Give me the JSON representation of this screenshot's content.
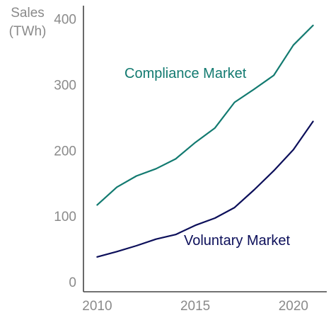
{
  "chart_data": {
    "type": "line",
    "ylabel_lines": [
      "Sales",
      "(TWh)"
    ],
    "x_ticks": [
      2010,
      2015,
      2020
    ],
    "y_ticks": [
      0,
      100,
      200,
      300,
      400
    ],
    "xlim": [
      2009.3,
      2021.7
    ],
    "ylim": [
      -15,
      420
    ],
    "grid": false,
    "x": [
      2010,
      2011,
      2012,
      2013,
      2014,
      2015,
      2016,
      2017,
      2018,
      2019,
      2020,
      2021
    ],
    "series": [
      {
        "name": "Compliance Market",
        "color": "#127a70",
        "values": [
          117,
          144,
          161,
          172,
          187,
          212,
          234,
          273,
          293,
          314,
          360,
          390
        ]
      },
      {
        "name": "Voluntary Market",
        "color": "#0c0f5a",
        "values": [
          38,
          46,
          55,
          65,
          72,
          86,
          97,
          113,
          140,
          169,
          201,
          244
        ]
      }
    ]
  }
}
